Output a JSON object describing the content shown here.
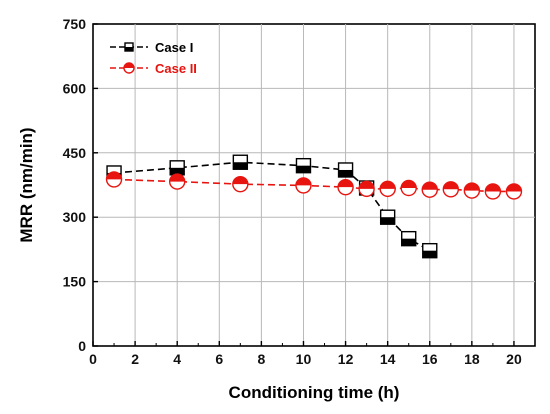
{
  "chart_data": {
    "type": "line",
    "xlabel": "Conditioning time (h)",
    "ylabel": "MRR (nm/min)",
    "xlim": [
      0,
      21
    ],
    "ylim": [
      0,
      750
    ],
    "xticks": [
      0,
      2,
      4,
      6,
      8,
      10,
      12,
      14,
      16,
      18,
      20
    ],
    "yticks": [
      0,
      150,
      300,
      450,
      600,
      750
    ],
    "grid": true,
    "legend_position": "top-left",
    "series": [
      {
        "name": "Case I",
        "color": "#000000",
        "marker": "square-half-filled-bottom",
        "line_style": "dashed",
        "x": [
          1,
          4,
          7,
          10,
          12,
          13,
          14,
          15,
          16
        ],
        "y": [
          403,
          415,
          428,
          420,
          410,
          368,
          300,
          250,
          222
        ]
      },
      {
        "name": "Case II",
        "color": "#e8140f",
        "marker": "circle-half-filled-top",
        "line_style": "dashed",
        "x": [
          1,
          4,
          7,
          10,
          12,
          13,
          14,
          15,
          16,
          17,
          18,
          19,
          20
        ],
        "y": [
          388,
          383,
          377,
          374,
          370,
          366,
          366,
          368,
          364,
          365,
          362,
          360,
          360
        ]
      }
    ]
  }
}
